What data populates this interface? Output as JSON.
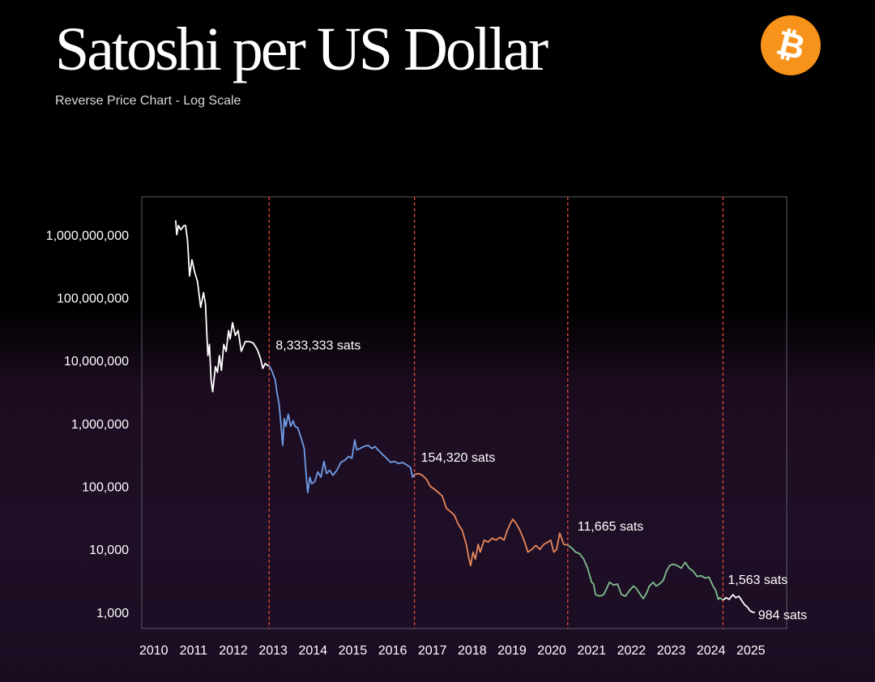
{
  "header": {
    "title": "Satoshi per US Dollar",
    "subtitle": "Reverse Price Chart - Log Scale"
  },
  "logo": {
    "icon": "bitcoin-logo-icon",
    "glyph": "₿",
    "color": "#F7931A"
  },
  "colors": {
    "background": "#000000",
    "axes": "#5a5a66",
    "halving_line": "#e04a3a",
    "segment_1": "#ffffff",
    "segment_2": "#6f9ee8",
    "segment_3": "#e8875a",
    "segment_4": "#7fbf8f",
    "segment_5": "#ffffff"
  },
  "chart_data": {
    "type": "line",
    "title": "Satoshi per US Dollar",
    "subtitle": "Reverse Price Chart - Log Scale",
    "xlabel": "",
    "ylabel": "",
    "yscale": "log",
    "xlim": [
      2009.7,
      2025.9
    ],
    "ylim": [
      550,
      4000000000
    ],
    "x_ticks": [
      2010,
      2011,
      2012,
      2013,
      2014,
      2015,
      2016,
      2017,
      2018,
      2019,
      2020,
      2021,
      2022,
      2023,
      2024,
      2025
    ],
    "y_ticks": [
      {
        "value": 1000,
        "label": "1,000"
      },
      {
        "value": 10000,
        "label": "10,000"
      },
      {
        "value": 100000,
        "label": "100,000"
      },
      {
        "value": 1000000,
        "label": "1,000,000"
      },
      {
        "value": 10000000,
        "label": "10,000,000"
      },
      {
        "value": 100000000,
        "label": "100,000,000"
      },
      {
        "value": 1000000000,
        "label": "1,000,000,000"
      }
    ],
    "grid": false,
    "halvings": [
      2012.9,
      2016.55,
      2020.4,
      2024.3
    ],
    "annotations": [
      {
        "x": 2012.9,
        "y": 8333333,
        "label": "8,333,333 sats"
      },
      {
        "x": 2016.55,
        "y": 154320,
        "label": "154,320 sats"
      },
      {
        "x": 2020.4,
        "y": 11665,
        "label": "11,665 sats"
      },
      {
        "x": 2024.3,
        "y": 1563,
        "label": "1,563 sats"
      },
      {
        "x": 2025.1,
        "y": 984,
        "label": "984 sats"
      }
    ],
    "series": [
      {
        "color": "#ffffff",
        "points": [
          [
            2010.55,
            1700000000
          ],
          [
            2010.58,
            1000000000
          ],
          [
            2010.62,
            1400000000
          ],
          [
            2010.68,
            1200000000
          ],
          [
            2010.76,
            1400000000
          ],
          [
            2010.8,
            1400000000
          ],
          [
            2010.85,
            800000000
          ],
          [
            2010.9,
            220000000
          ],
          [
            2010.96,
            400000000
          ],
          [
            2011.03,
            250000000
          ],
          [
            2011.1,
            180000000
          ],
          [
            2011.18,
            70000000
          ],
          [
            2011.25,
            120000000
          ],
          [
            2011.3,
            80000000
          ],
          [
            2011.33,
            30000000
          ],
          [
            2011.36,
            12000000
          ],
          [
            2011.4,
            18000000
          ],
          [
            2011.44,
            5000000
          ],
          [
            2011.48,
            3200000
          ],
          [
            2011.55,
            8000000
          ],
          [
            2011.6,
            6500000
          ],
          [
            2011.65,
            12000000
          ],
          [
            2011.7,
            7000000
          ],
          [
            2011.76,
            18000000
          ],
          [
            2011.82,
            14000000
          ],
          [
            2011.88,
            30000000
          ],
          [
            2011.92,
            22000000
          ],
          [
            2011.98,
            40000000
          ],
          [
            2012.05,
            25000000
          ],
          [
            2012.12,
            30000000
          ],
          [
            2012.2,
            14000000
          ],
          [
            2012.3,
            20000000
          ],
          [
            2012.4,
            20000000
          ],
          [
            2012.5,
            19000000
          ],
          [
            2012.6,
            15000000
          ],
          [
            2012.68,
            11000000
          ],
          [
            2012.74,
            7500000
          ],
          [
            2012.8,
            9000000
          ],
          [
            2012.86,
            8300000
          ],
          [
            2012.9,
            8333333
          ]
        ]
      },
      {
        "color": "#6f9ee8",
        "points": [
          [
            2012.9,
            8333333
          ],
          [
            2012.96,
            7000000
          ],
          [
            2013.05,
            5000000
          ],
          [
            2013.1,
            3000000
          ],
          [
            2013.15,
            2000000
          ],
          [
            2013.2,
            900000
          ],
          [
            2013.24,
            450000
          ],
          [
            2013.28,
            1200000
          ],
          [
            2013.32,
            900000
          ],
          [
            2013.38,
            1400000
          ],
          [
            2013.44,
            900000
          ],
          [
            2013.5,
            1100000
          ],
          [
            2013.55,
            900000
          ],
          [
            2013.62,
            850000
          ],
          [
            2013.7,
            600000
          ],
          [
            2013.78,
            400000
          ],
          [
            2013.83,
            150000
          ],
          [
            2013.87,
            80000
          ],
          [
            2013.92,
            140000
          ],
          [
            2013.97,
            110000
          ],
          [
            2014.05,
            120000
          ],
          [
            2014.12,
            170000
          ],
          [
            2014.2,
            140000
          ],
          [
            2014.28,
            250000
          ],
          [
            2014.34,
            160000
          ],
          [
            2014.42,
            180000
          ],
          [
            2014.5,
            150000
          ],
          [
            2014.6,
            180000
          ],
          [
            2014.7,
            240000
          ],
          [
            2014.8,
            260000
          ],
          [
            2014.9,
            300000
          ],
          [
            2014.98,
            280000
          ],
          [
            2015.05,
            550000
          ],
          [
            2015.1,
            380000
          ],
          [
            2015.18,
            400000
          ],
          [
            2015.28,
            430000
          ],
          [
            2015.38,
            450000
          ],
          [
            2015.48,
            400000
          ],
          [
            2015.56,
            430000
          ],
          [
            2015.65,
            370000
          ],
          [
            2015.75,
            320000
          ],
          [
            2015.85,
            280000
          ],
          [
            2015.95,
            240000
          ],
          [
            2016.05,
            250000
          ],
          [
            2016.15,
            230000
          ],
          [
            2016.25,
            240000
          ],
          [
            2016.35,
            220000
          ],
          [
            2016.45,
            200000
          ],
          [
            2016.5,
            140000
          ],
          [
            2016.55,
            154320
          ]
        ]
      },
      {
        "color": "#e8875a",
        "points": [
          [
            2016.55,
            154320
          ],
          [
            2016.65,
            160000
          ],
          [
            2016.75,
            150000
          ],
          [
            2016.85,
            130000
          ],
          [
            2016.95,
            100000
          ],
          [
            2017.05,
            90000
          ],
          [
            2017.15,
            80000
          ],
          [
            2017.25,
            70000
          ],
          [
            2017.35,
            45000
          ],
          [
            2017.45,
            40000
          ],
          [
            2017.55,
            35000
          ],
          [
            2017.65,
            25000
          ],
          [
            2017.75,
            20000
          ],
          [
            2017.85,
            12000
          ],
          [
            2017.92,
            7000
          ],
          [
            2017.96,
            5500
          ],
          [
            2018.02,
            9000
          ],
          [
            2018.08,
            7000
          ],
          [
            2018.15,
            12000
          ],
          [
            2018.2,
            9000
          ],
          [
            2018.3,
            14000
          ],
          [
            2018.4,
            13000
          ],
          [
            2018.5,
            15000
          ],
          [
            2018.6,
            14000
          ],
          [
            2018.7,
            15500
          ],
          [
            2018.8,
            14000
          ],
          [
            2018.88,
            20000
          ],
          [
            2018.95,
            25000
          ],
          [
            2019.02,
            30000
          ],
          [
            2019.1,
            26000
          ],
          [
            2019.2,
            20000
          ],
          [
            2019.3,
            14000
          ],
          [
            2019.4,
            9000
          ],
          [
            2019.5,
            10000
          ],
          [
            2019.6,
            11500
          ],
          [
            2019.7,
            10000
          ],
          [
            2019.8,
            12000
          ],
          [
            2019.9,
            13000
          ],
          [
            2019.97,
            14000
          ],
          [
            2020.05,
            9000
          ],
          [
            2020.12,
            10000
          ],
          [
            2020.2,
            18000
          ],
          [
            2020.3,
            12000
          ],
          [
            2020.4,
            11665
          ]
        ]
      },
      {
        "color": "#7fbf8f",
        "points": [
          [
            2020.4,
            11665
          ],
          [
            2020.5,
            10500
          ],
          [
            2020.6,
            9000
          ],
          [
            2020.7,
            8500
          ],
          [
            2020.8,
            7000
          ],
          [
            2020.9,
            5000
          ],
          [
            2021.0,
            3000
          ],
          [
            2021.05,
            2800
          ],
          [
            2021.1,
            1900
          ],
          [
            2021.2,
            1800
          ],
          [
            2021.3,
            1900
          ],
          [
            2021.38,
            2400
          ],
          [
            2021.45,
            3000
          ],
          [
            2021.55,
            2700
          ],
          [
            2021.65,
            2800
          ],
          [
            2021.75,
            1900
          ],
          [
            2021.85,
            1800
          ],
          [
            2021.95,
            2200
          ],
          [
            2022.05,
            2600
          ],
          [
            2022.12,
            2400
          ],
          [
            2022.18,
            2100
          ],
          [
            2022.25,
            1800
          ],
          [
            2022.3,
            1650
          ],
          [
            2022.38,
            2000
          ],
          [
            2022.45,
            2600
          ],
          [
            2022.55,
            3000
          ],
          [
            2022.62,
            2600
          ],
          [
            2022.7,
            2800
          ],
          [
            2022.8,
            3200
          ],
          [
            2022.88,
            4500
          ],
          [
            2022.96,
            5500
          ],
          [
            2023.05,
            5800
          ],
          [
            2023.15,
            5500
          ],
          [
            2023.25,
            5000
          ],
          [
            2023.35,
            6200
          ],
          [
            2023.45,
            5000
          ],
          [
            2023.55,
            4500
          ],
          [
            2023.65,
            3700
          ],
          [
            2023.75,
            3800
          ],
          [
            2023.85,
            3500
          ],
          [
            2023.95,
            3600
          ],
          [
            2024.05,
            2600
          ],
          [
            2024.12,
            2200
          ],
          [
            2024.18,
            1600
          ],
          [
            2024.22,
            1700
          ],
          [
            2024.3,
            1563
          ]
        ]
      },
      {
        "color": "#ffffff",
        "points": [
          [
            2024.3,
            1563
          ],
          [
            2024.38,
            1700
          ],
          [
            2024.45,
            1600
          ],
          [
            2024.55,
            1900
          ],
          [
            2024.62,
            1700
          ],
          [
            2024.7,
            1800
          ],
          [
            2024.78,
            1500
          ],
          [
            2024.85,
            1300
          ],
          [
            2024.92,
            1200
          ],
          [
            2024.98,
            1050
          ],
          [
            2025.05,
            1000
          ],
          [
            2025.1,
            984
          ]
        ]
      }
    ]
  }
}
